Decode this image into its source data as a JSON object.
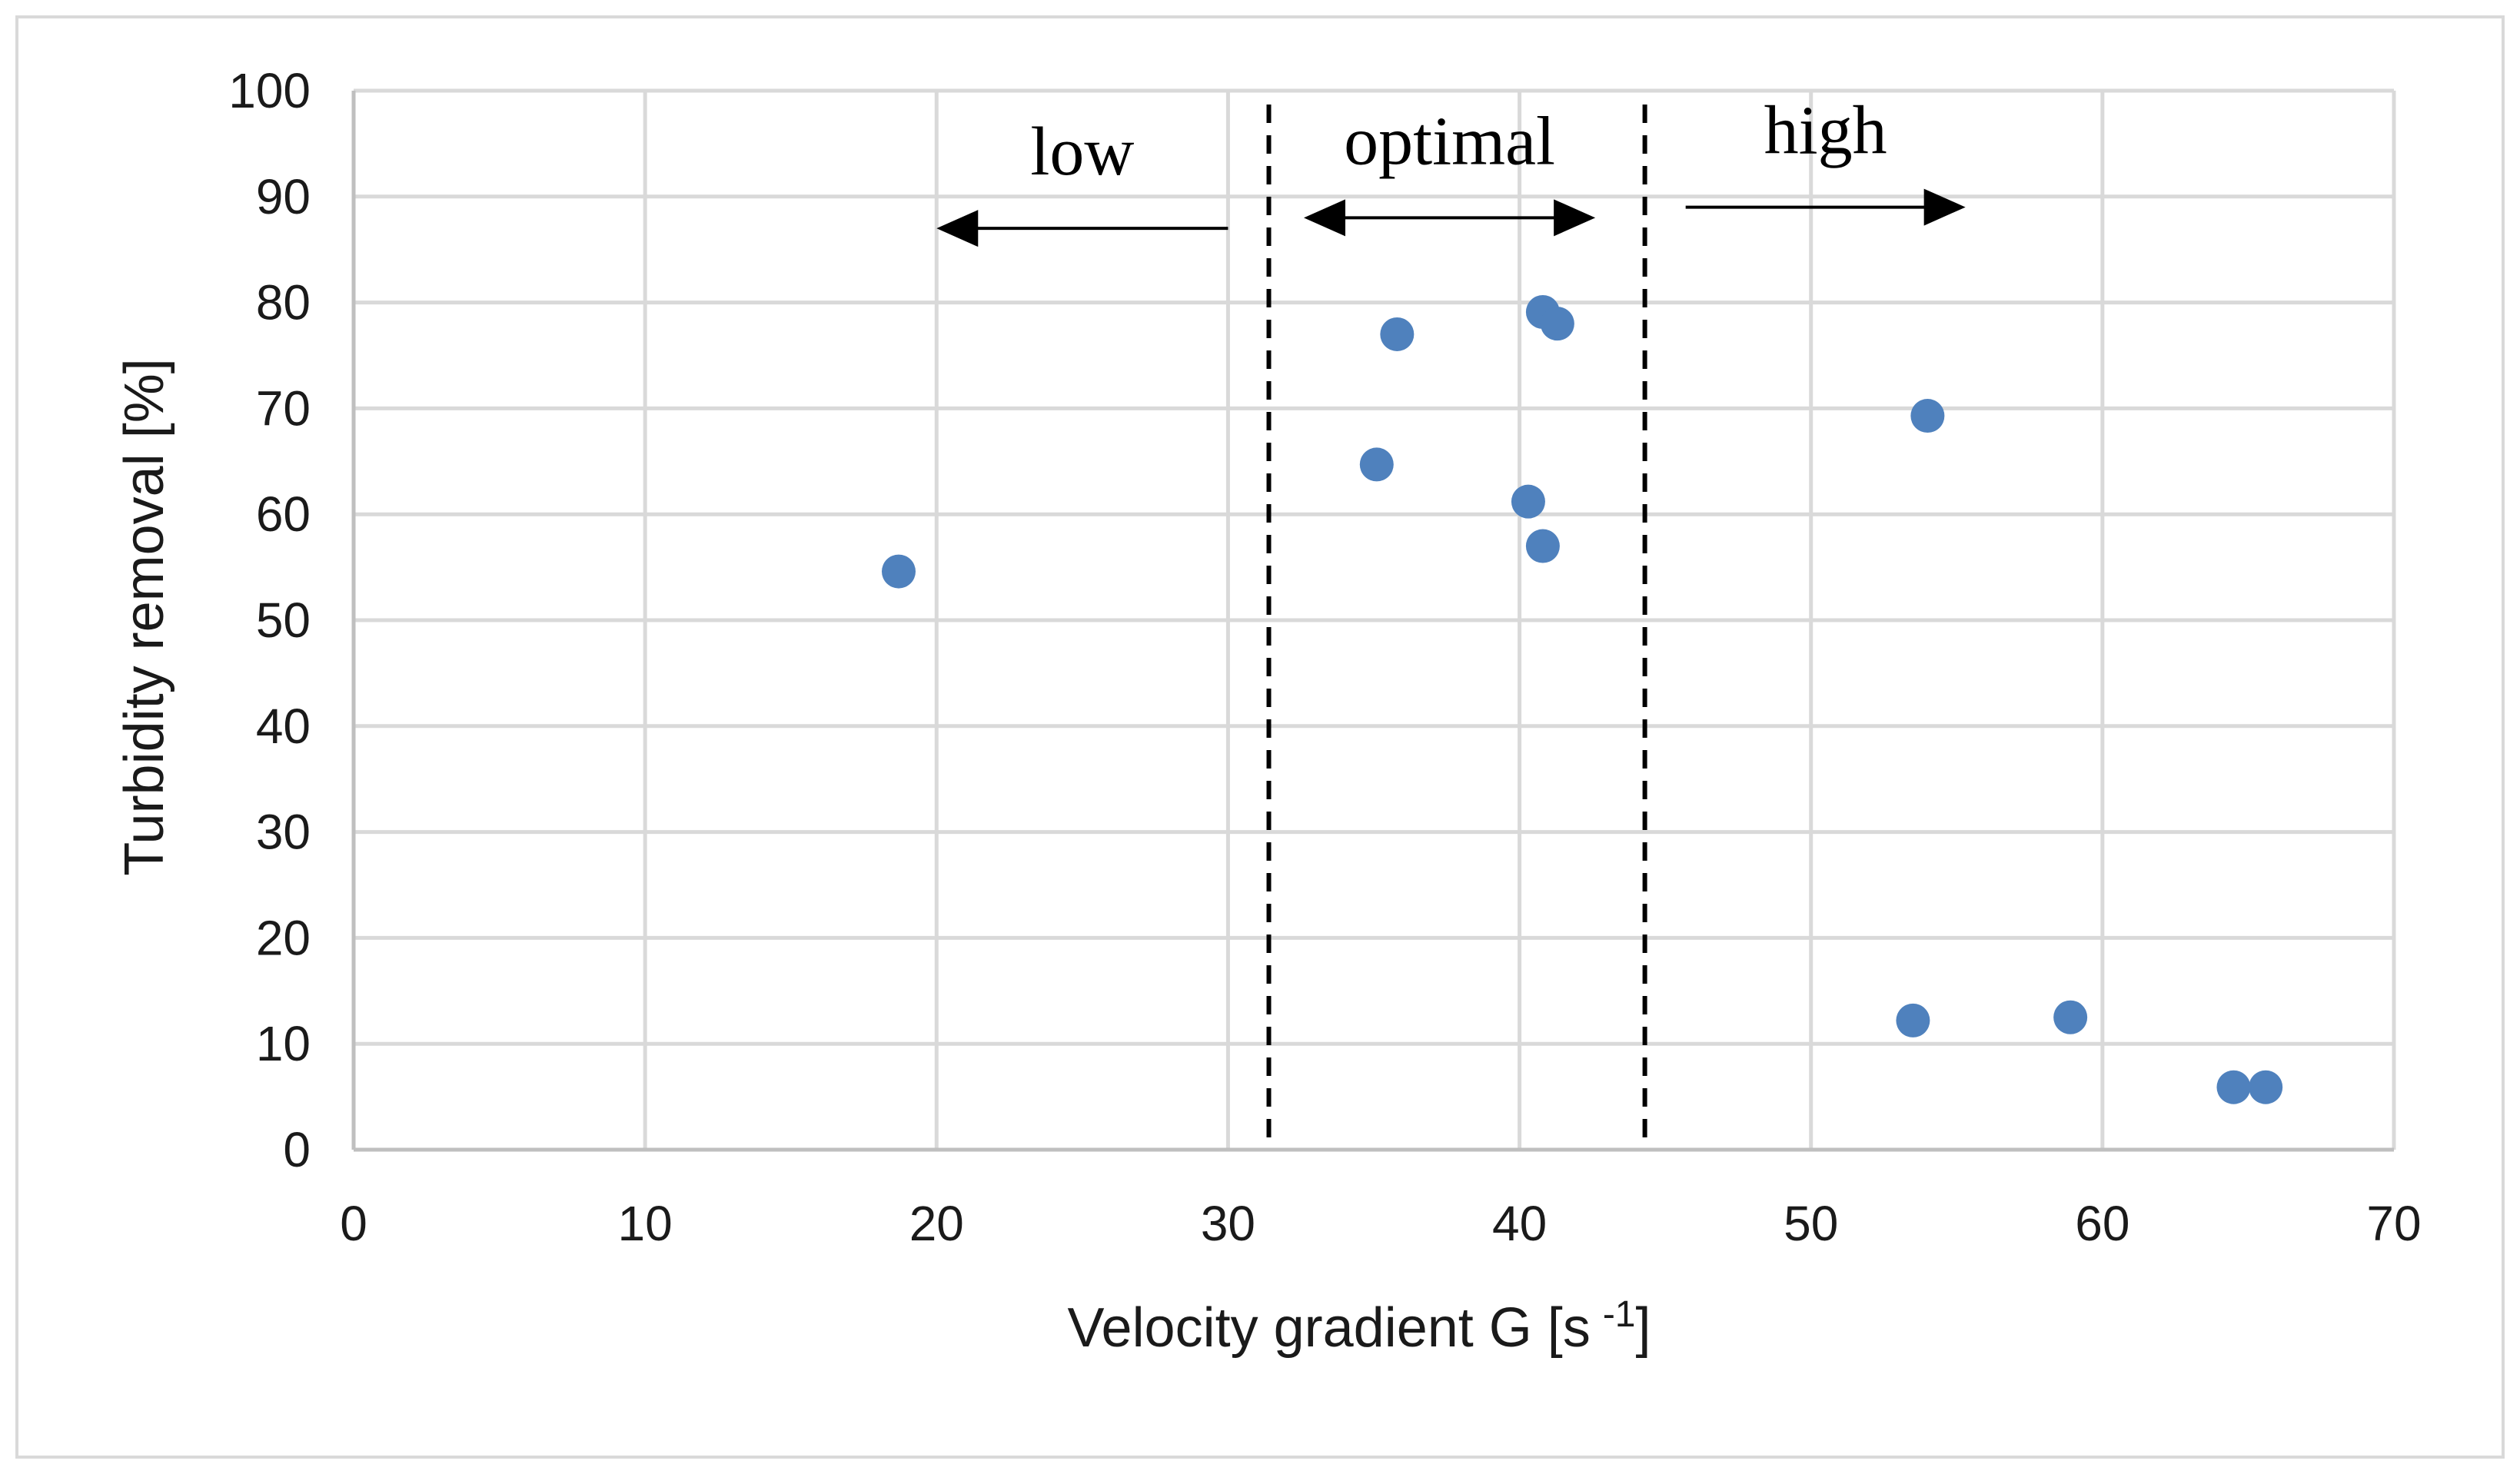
{
  "colors": {
    "marker": "#4f81bd",
    "grid": "#d9d9d9",
    "text": "#1a1a1a"
  },
  "chart_data": {
    "type": "scatter",
    "title": "",
    "xlabel": "Velocity gradient G [s",
    "xlabel_superscript": "-1",
    "xlabel_suffix": "]",
    "ylabel": "Turbidity removal [%]",
    "xlim": [
      0,
      70
    ],
    "ylim": [
      0,
      100
    ],
    "xticks": [
      0,
      10,
      20,
      30,
      40,
      50,
      60,
      70
    ],
    "yticks": [
      0,
      10,
      20,
      30,
      40,
      50,
      60,
      70,
      80,
      90,
      100
    ],
    "grid": true,
    "series": [
      {
        "name": "Turbidity removal",
        "x": [
          18.7,
          35.1,
          35.8,
          40.3,
          40.8,
          40.8,
          41.3,
          53.5,
          54.0,
          58.9,
          64.5,
          65.6
        ],
        "y": [
          54.6,
          64.7,
          77.0,
          61.2,
          79.1,
          57.0,
          78.0,
          12.2,
          69.3,
          12.5,
          5.9,
          5.9
        ]
      }
    ],
    "regions": {
      "boundaries_x": [
        31.4,
        44.3
      ],
      "labels": [
        {
          "text": "low",
          "x_from": 30,
          "x_to": 20,
          "y": 87,
          "arrow": "left"
        },
        {
          "text": "optimal",
          "x_from": 32.6,
          "x_to": 42.6,
          "y": 88,
          "arrow": "both"
        },
        {
          "text": "high",
          "x_from": 45.7,
          "x_to": 55.3,
          "y": 89,
          "arrow": "right"
        }
      ]
    }
  }
}
